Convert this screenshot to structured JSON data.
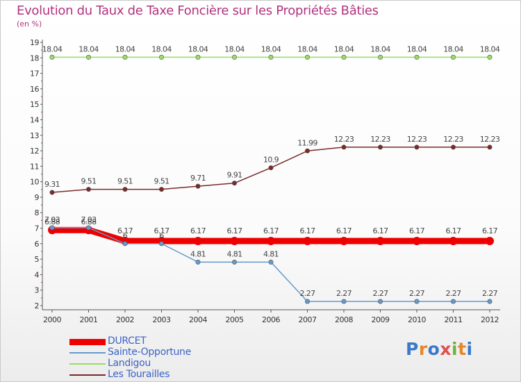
{
  "header": {
    "title": "Evolution du Taux de Taxe Foncière sur les Propriétés Bâties",
    "unit": "(en %)"
  },
  "brand": {
    "name": "Proxiti"
  },
  "chart_data": {
    "type": "line",
    "title": "Evolution du Taux de Taxe Foncière sur les Propriétés Bâties",
    "ylabel": "(en %)",
    "xlabel": "",
    "ylim": [
      2,
      19
    ],
    "yticks": [
      2,
      3,
      4,
      5,
      6,
      7,
      8,
      9,
      10,
      11,
      12,
      13,
      14,
      15,
      16,
      17,
      18,
      19
    ],
    "categories": [
      "2000",
      "2001",
      "2002",
      "2003",
      "2004",
      "2005",
      "2006",
      "2007",
      "2008",
      "2009",
      "2010",
      "2011",
      "2012"
    ],
    "legend_position": "bottom-left",
    "series": [
      {
        "name": "DURCET",
        "color": "#ee0000",
        "values": [
          6.88,
          6.88,
          6.17,
          6.17,
          6.17,
          6.17,
          6.17,
          6.17,
          6.17,
          6.17,
          6.17,
          6.17,
          6.17
        ],
        "labels": [
          "6.88",
          "6.88",
          "",
          "",
          "",
          "",
          "",
          "",
          "",
          "",
          "",
          "",
          ""
        ]
      },
      {
        "name": "Sainte-Opportune",
        "color": "#6699cc",
        "values": [
          7.03,
          7.03,
          6.0,
          6.0,
          4.81,
          4.81,
          4.81,
          2.27,
          2.27,
          2.27,
          2.27,
          2.27,
          2.27
        ],
        "labels": [
          "7.03",
          "7.03",
          "6",
          "6",
          "4.81",
          "4.81",
          "4.81",
          "2.27",
          "2.27",
          "2.27",
          "2.27",
          "2.27",
          "2.27"
        ]
      },
      {
        "name": "Landigou",
        "color": "#99dd66",
        "values": [
          18.04,
          18.04,
          18.04,
          18.04,
          18.04,
          18.04,
          18.04,
          18.04,
          18.04,
          18.04,
          18.04,
          18.04,
          18.04
        ],
        "labels": [
          "18.04",
          "18.04",
          "18.04",
          "18.04",
          "18.04",
          "18.04",
          "18.04",
          "18.04",
          "18.04",
          "18.04",
          "18.04",
          "18.04",
          "18.04"
        ]
      },
      {
        "name": "Les Tourailles",
        "color": "#7a2a2a",
        "values": [
          9.31,
          9.51,
          9.51,
          9.51,
          9.71,
          9.91,
          10.9,
          11.99,
          12.23,
          12.23,
          12.23,
          12.23,
          12.23
        ],
        "labels": [
          "9.31",
          "9.51",
          "9.51",
          "9.51",
          "9.71",
          "9.91",
          "10.9",
          "11.99",
          "12.23",
          "12.23",
          "12.23",
          "12.23",
          "12.23"
        ]
      }
    ],
    "extra_labels": [
      {
        "series": "DURCET",
        "index": 2,
        "text": "6.17"
      },
      {
        "series": "DURCET",
        "index": 3,
        "text": "6.17"
      },
      {
        "series": "DURCET",
        "index": 4,
        "text": "6.17"
      },
      {
        "series": "DURCET",
        "index": 5,
        "text": "6.17"
      },
      {
        "series": "DURCET",
        "index": 6,
        "text": "6.17"
      },
      {
        "series": "DURCET",
        "index": 7,
        "text": "6.17"
      },
      {
        "series": "DURCET",
        "index": 8,
        "text": "6.17"
      },
      {
        "series": "DURCET",
        "index": 9,
        "text": "6.17"
      },
      {
        "series": "DURCET",
        "index": 10,
        "text": "6.17"
      },
      {
        "series": "DURCET",
        "index": 11,
        "text": "6.17"
      },
      {
        "series": "DURCET",
        "index": 12,
        "text": "6.17"
      }
    ]
  }
}
